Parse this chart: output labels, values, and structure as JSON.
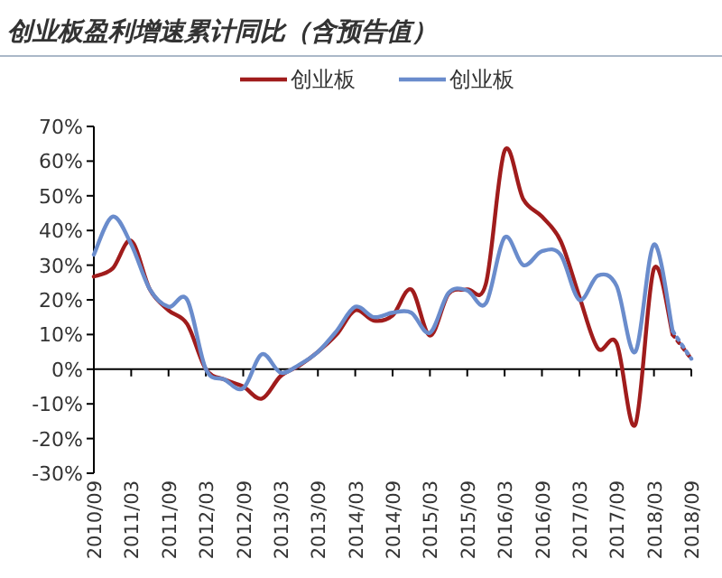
{
  "chart_data": {
    "type": "line",
    "title": "创业板盈利增速累计同比（含预告值）",
    "categories": [
      "2010/09",
      null,
      "2011/03",
      null,
      "2011/09",
      null,
      "2012/03",
      null,
      "2012/09",
      null,
      "2013/03",
      null,
      "2013/09",
      null,
      "2014/03",
      null,
      "2014/09",
      null,
      "2015/03",
      null,
      "2015/09",
      null,
      "2016/03",
      null,
      "2016/09",
      null,
      "2017/03",
      null,
      "2017/09",
      null,
      "2018/03",
      null,
      "2018/09"
    ],
    "ylim": [
      -30,
      70
    ],
    "yticks": [
      {
        "value": -30,
        "label": "-30%"
      },
      {
        "value": -20,
        "label": "-20%"
      },
      {
        "value": -10,
        "label": "-10%"
      },
      {
        "value": 0,
        "label": "0%"
      },
      {
        "value": 10,
        "label": "10%"
      },
      {
        "value": 20,
        "label": "20%"
      },
      {
        "value": 30,
        "label": "30%"
      },
      {
        "value": 40,
        "label": "40%"
      },
      {
        "value": 50,
        "label": "50%"
      },
      {
        "value": 60,
        "label": "60%"
      },
      {
        "value": 70,
        "label": "70%"
      }
    ],
    "legend": "top",
    "marker": "none",
    "series": [
      {
        "name": "创业板",
        "color": "#a01c1c",
        "line_style": "solid",
        "values": [
          26.7,
          29,
          37,
          23,
          17,
          13,
          0,
          -3,
          -5,
          -8.5,
          -2,
          1,
          5,
          10,
          17,
          14,
          15.5,
          23,
          9.7,
          21.7,
          23,
          24.7,
          63,
          49,
          44,
          37,
          21,
          6,
          7.5,
          -16,
          29,
          10,
          null
        ]
      },
      {
        "name": "创业板",
        "color": "#6a8ccc",
        "line_style": "solid",
        "values": [
          33,
          44,
          36,
          23,
          18,
          20,
          0,
          -3,
          -5.5,
          4.3,
          -1,
          1.3,
          5,
          11,
          18,
          15,
          16.3,
          16.3,
          10.5,
          22,
          22.7,
          19,
          38,
          30,
          34,
          33,
          20,
          27,
          24,
          5,
          36,
          11,
          null
        ]
      },
      {
        "color": "#a01c1c",
        "line_style": "dotted",
        "values": [
          null,
          null,
          null,
          null,
          null,
          null,
          null,
          null,
          null,
          null,
          null,
          null,
          null,
          null,
          null,
          null,
          null,
          null,
          null,
          null,
          null,
          null,
          null,
          null,
          null,
          null,
          null,
          null,
          null,
          null,
          null,
          10,
          3
        ]
      },
      {
        "color": "#6a8ccc",
        "line_style": "dotted",
        "values": [
          null,
          null,
          null,
          null,
          null,
          null,
          null,
          null,
          null,
          null,
          null,
          null,
          null,
          null,
          null,
          null,
          null,
          null,
          null,
          null,
          null,
          null,
          null,
          null,
          null,
          null,
          null,
          null,
          null,
          null,
          null,
          11,
          3
        ]
      }
    ]
  }
}
